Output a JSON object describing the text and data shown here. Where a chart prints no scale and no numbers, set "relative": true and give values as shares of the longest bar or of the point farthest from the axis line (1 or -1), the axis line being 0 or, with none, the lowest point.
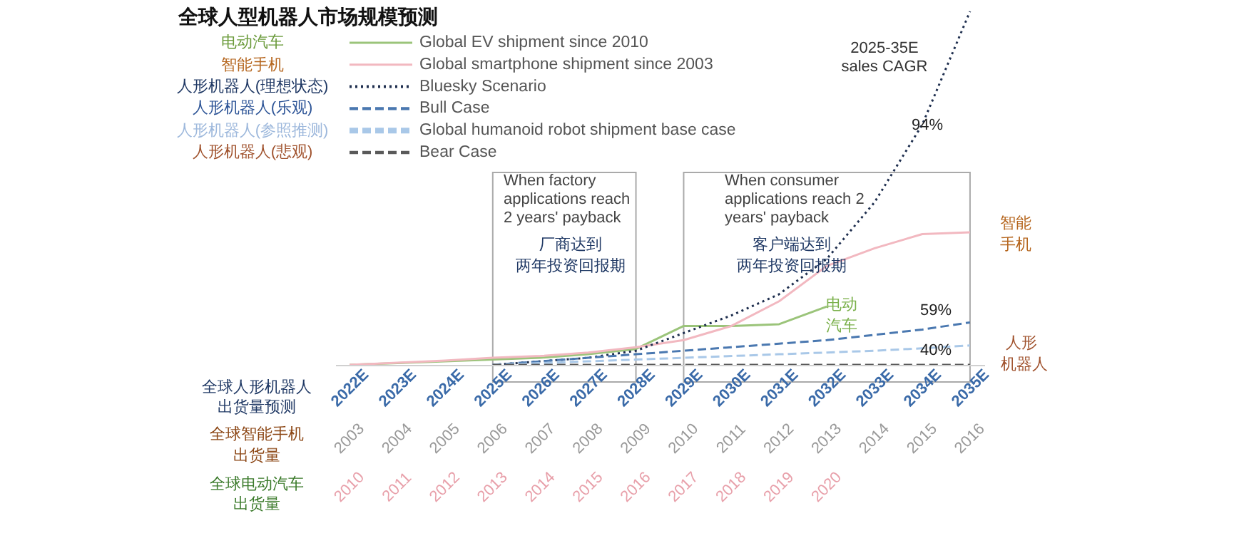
{
  "chart_data": {
    "type": "line",
    "relative": true,
    "title": "全球人型机器人市场规模预测",
    "categories": [
      "2022E",
      "2023E",
      "2024E",
      "2025E",
      "2026E",
      "2027E",
      "2028E",
      "2029E",
      "2030E",
      "2031E",
      "2032E",
      "2033E",
      "2034E",
      "2035E"
    ],
    "series": [
      {
        "name": "Global EV shipment since 2010",
        "color": "#9bc47a",
        "line_style": "solid",
        "values": [
          0,
          0.005,
          0.01,
          0.015,
          0.02,
          0.03,
          0.045,
          0.11,
          0.11,
          0.115,
          0.165,
          null,
          null,
          null
        ]
      },
      {
        "name": "Global smartphone shipment since 2003",
        "color": "#f2b8c0",
        "line_style": "solid",
        "values": [
          0,
          0.006,
          0.012,
          0.02,
          0.025,
          0.035,
          0.05,
          0.07,
          0.11,
          0.18,
          0.28,
          0.33,
          0.37,
          0.375
        ]
      },
      {
        "name": "Bluesky Scenario",
        "color": "#1f2f4f",
        "line_style": "dotted",
        "values": [
          null,
          null,
          null,
          0,
          0.01,
          0.02,
          0.04,
          0.09,
          0.14,
          0.2,
          0.3,
          0.46,
          0.68,
          1
        ]
      },
      {
        "name": "Bull Case",
        "color": "#4a78b0",
        "line_style": "dashed",
        "values": [
          null,
          null,
          null,
          0,
          0.01,
          0.02,
          0.03,
          0.04,
          0.05,
          0.06,
          0.07,
          0.085,
          0.1,
          0.12
        ]
      },
      {
        "name": "Global humanoid robot shipment base case",
        "color": "#a9c8e8",
        "line_style": "dashed",
        "values": [
          null,
          null,
          null,
          0,
          0.005,
          0.01,
          0.015,
          0.02,
          0.025,
          0.03,
          0.035,
          0.04,
          0.047,
          0.055
        ]
      },
      {
        "name": "Bear Case",
        "color": "#5a5a5a",
        "line_style": "dashed",
        "values": [
          null,
          null,
          null,
          0,
          0,
          0,
          0,
          0,
          0,
          0,
          0,
          0,
          0,
          0
        ]
      }
    ],
    "annotations": [
      "电动汽车",
      "智能手机",
      "人形机器人(理想状态)",
      "人形机器人(乐观)",
      "人形机器人(参照推测)",
      "人形机器人(悲观)",
      "2025-35E\nsales CAGR",
      "94%",
      "59%",
      "40%",
      "When factory\napplications reach\n2 years' payback",
      "When consumer\napplications reach 2\nyears' payback",
      "厂商达到",
      "两年投资回报期",
      "客户端达到",
      "两年投资回报期",
      "智能",
      "手机",
      "电动",
      "汽车",
      "人形",
      "机器人",
      "全球人形机器人",
      "出货量预测",
      "全球智能手机",
      "出货量",
      "全球电动汽车",
      "出货量",
      "2003",
      "2004",
      "2005",
      "2006",
      "2007",
      "2008",
      "2009",
      "2010",
      "2011",
      "2012",
      "2013",
      "2014",
      "2015",
      "2016",
      "2010",
      "2011",
      "2012",
      "2013",
      "2014",
      "2015",
      "2016",
      "2017",
      "2018",
      "2019",
      "2020"
    ],
    "legend": "top left",
    "grid": false
  }
}
